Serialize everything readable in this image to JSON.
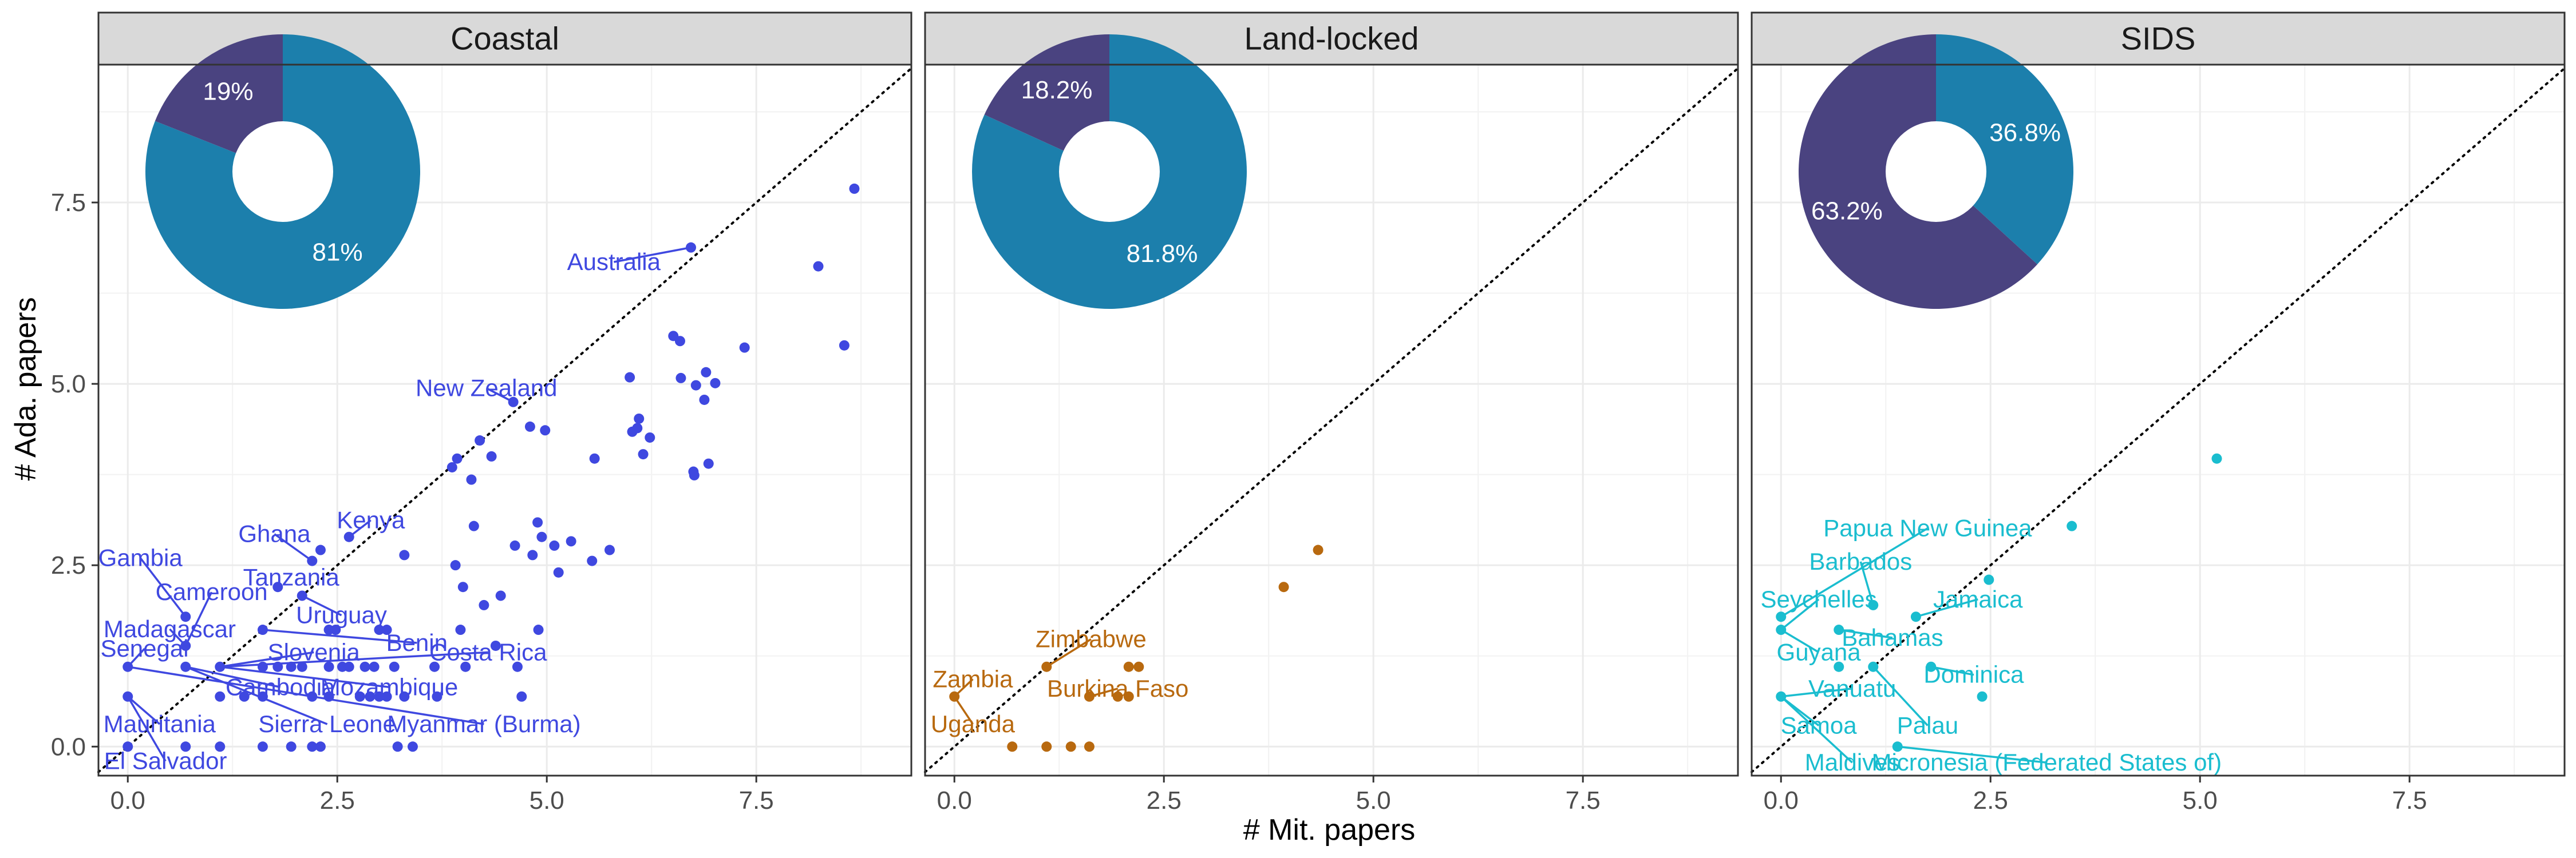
{
  "chart_data": {
    "type": "scatter",
    "xlabel": "# Mit. papers",
    "ylabel": "# Ada. papers",
    "xlim": [
      -0.35,
      9.35
    ],
    "ylim": [
      -0.4,
      9.4
    ],
    "x_ticks": [
      "0.0",
      "2.5",
      "5.0",
      "7.5"
    ],
    "x_tick_values": [
      0,
      2.5,
      5,
      7.5
    ],
    "y_ticks": [
      "0.0",
      "2.5",
      "5.0",
      "7.5"
    ],
    "y_tick_values": [
      0,
      2.5,
      5,
      7.5
    ],
    "grid": true,
    "reference_line": "y = x (dotted)",
    "facets": [
      {
        "name": "Coastal",
        "color": "#3F48E0",
        "pie": {
          "slices": [
            {
              "label": "81%",
              "value": 81,
              "color": "#1C7FAC"
            },
            {
              "label": "19%",
              "value": 19,
              "color": "#4A4380"
            }
          ]
        },
        "points": [
          {
            "x": 0.0,
            "y": 1.1
          },
          {
            "x": 0.0,
            "y": 0.69
          },
          {
            "x": 0.0,
            "y": 0.0
          },
          {
            "x": 0.69,
            "y": 1.79
          },
          {
            "x": 0.69,
            "y": 1.39
          },
          {
            "x": 0.69,
            "y": 1.1
          },
          {
            "x": 0.69,
            "y": 0.0
          },
          {
            "x": 1.1,
            "y": 1.1
          },
          {
            "x": 1.1,
            "y": 0.69
          },
          {
            "x": 1.1,
            "y": 0.0
          },
          {
            "x": 1.39,
            "y": 0.69
          },
          {
            "x": 1.61,
            "y": 1.61
          },
          {
            "x": 1.61,
            "y": 1.1
          },
          {
            "x": 1.61,
            "y": 0.69
          },
          {
            "x": 1.61,
            "y": 0.0
          },
          {
            "x": 1.79,
            "y": 2.2
          },
          {
            "x": 1.79,
            "y": 1.1
          },
          {
            "x": 1.95,
            "y": 1.1
          },
          {
            "x": 1.95,
            "y": 0.0
          },
          {
            "x": 2.08,
            "y": 2.08
          },
          {
            "x": 2.08,
            "y": 1.1
          },
          {
            "x": 2.2,
            "y": 2.56
          },
          {
            "x": 2.2,
            "y": 0.69
          },
          {
            "x": 2.2,
            "y": 0.0
          },
          {
            "x": 2.3,
            "y": 2.71
          },
          {
            "x": 2.3,
            "y": 0.0
          },
          {
            "x": 2.4,
            "y": 1.61
          },
          {
            "x": 2.4,
            "y": 1.1
          },
          {
            "x": 2.4,
            "y": 0.69
          },
          {
            "x": 2.48,
            "y": 1.61
          },
          {
            "x": 2.56,
            "y": 1.1
          },
          {
            "x": 2.64,
            "y": 2.89
          },
          {
            "x": 2.64,
            "y": 1.1
          },
          {
            "x": 2.77,
            "y": 0.69
          },
          {
            "x": 2.83,
            "y": 1.1
          },
          {
            "x": 2.89,
            "y": 0.69
          },
          {
            "x": 2.94,
            "y": 1.1
          },
          {
            "x": 3.0,
            "y": 1.61
          },
          {
            "x": 3.0,
            "y": 0.69
          },
          {
            "x": 3.09,
            "y": 1.61
          },
          {
            "x": 3.09,
            "y": 0.69
          },
          {
            "x": 3.18,
            "y": 1.1
          },
          {
            "x": 3.22,
            "y": 0.0
          },
          {
            "x": 3.3,
            "y": 2.64
          },
          {
            "x": 3.3,
            "y": 0.69
          },
          {
            "x": 3.4,
            "y": 0.0
          },
          {
            "x": 3.66,
            "y": 1.1
          },
          {
            "x": 3.69,
            "y": 0.69
          },
          {
            "x": 3.87,
            "y": 3.85
          },
          {
            "x": 3.91,
            "y": 2.5
          },
          {
            "x": 3.93,
            "y": 3.97
          },
          {
            "x": 3.97,
            "y": 1.61
          },
          {
            "x": 4.0,
            "y": 2.2
          },
          {
            "x": 4.03,
            "y": 1.1
          },
          {
            "x": 4.1,
            "y": 3.68
          },
          {
            "x": 4.13,
            "y": 3.04
          },
          {
            "x": 4.2,
            "y": 4.22
          },
          {
            "x": 4.25,
            "y": 1.95
          },
          {
            "x": 4.34,
            "y": 4.0
          },
          {
            "x": 4.39,
            "y": 1.39
          },
          {
            "x": 4.45,
            "y": 2.08
          },
          {
            "x": 4.6,
            "y": 4.75
          },
          {
            "x": 4.62,
            "y": 2.77
          },
          {
            "x": 4.65,
            "y": 1.1
          },
          {
            "x": 4.7,
            "y": 0.69
          },
          {
            "x": 4.8,
            "y": 4.41
          },
          {
            "x": 4.83,
            "y": 2.64
          },
          {
            "x": 4.89,
            "y": 3.09
          },
          {
            "x": 4.9,
            "y": 1.61
          },
          {
            "x": 4.94,
            "y": 2.89
          },
          {
            "x": 4.98,
            "y": 4.36
          },
          {
            "x": 5.09,
            "y": 2.77
          },
          {
            "x": 5.14,
            "y": 2.4
          },
          {
            "x": 5.29,
            "y": 2.83
          },
          {
            "x": 5.54,
            "y": 2.56
          },
          {
            "x": 5.57,
            "y": 3.97
          },
          {
            "x": 5.75,
            "y": 2.71
          },
          {
            "x": 5.99,
            "y": 5.09
          },
          {
            "x": 6.02,
            "y": 4.34
          },
          {
            "x": 6.08,
            "y": 4.39
          },
          {
            "x": 6.1,
            "y": 4.52
          },
          {
            "x": 6.15,
            "y": 4.03
          },
          {
            "x": 6.23,
            "y": 4.26
          },
          {
            "x": 6.51,
            "y": 5.66
          },
          {
            "x": 6.59,
            "y": 5.59
          },
          {
            "x": 6.6,
            "y": 5.08
          },
          {
            "x": 6.72,
            "y": 6.88
          },
          {
            "x": 6.75,
            "y": 3.79
          },
          {
            "x": 6.76,
            "y": 3.74
          },
          {
            "x": 6.78,
            "y": 4.98
          },
          {
            "x": 6.88,
            "y": 4.78
          },
          {
            "x": 6.9,
            "y": 5.16
          },
          {
            "x": 6.93,
            "y": 3.9
          },
          {
            "x": 7.01,
            "y": 5.01
          },
          {
            "x": 7.36,
            "y": 5.5
          },
          {
            "x": 8.24,
            "y": 6.62
          },
          {
            "x": 8.55,
            "y": 5.53
          },
          {
            "x": 8.67,
            "y": 7.69
          }
        ],
        "labels": [
          {
            "text": "Australia",
            "x": 5.8,
            "y": 6.68,
            "px": 6.72,
            "py": 6.88
          },
          {
            "text": "New Zealand",
            "x": 4.28,
            "y": 4.94,
            "px": 4.6,
            "py": 4.75
          },
          {
            "text": "Kenya",
            "x": 2.9,
            "y": 3.12,
            "px": 2.64,
            "py": 2.89
          },
          {
            "text": "Ghana",
            "x": 1.75,
            "y": 2.93,
            "px": 2.2,
            "py": 2.56
          },
          {
            "text": "Gambia",
            "x": 0.15,
            "y": 2.6,
            "px": 0.69,
            "py": 1.79
          },
          {
            "text": "Tanzania",
            "x": 1.95,
            "y": 2.33,
            "px": 1.79,
            "py": 2.2
          },
          {
            "text": "Cameroon",
            "x": 1.0,
            "y": 2.13,
            "px": 0.69,
            "py": 1.39
          },
          {
            "text": "Uruguay",
            "x": 2.55,
            "y": 1.81,
            "px": 2.08,
            "py": 2.08
          },
          {
            "text": "Madagascar",
            "x": 0.5,
            "y": 1.62,
            "px": 0.69,
            "py": 1.39
          },
          {
            "text": "Benin",
            "x": 3.45,
            "y": 1.43,
            "px": 1.61,
            "py": 1.61
          },
          {
            "text": "Senegal",
            "x": 0.2,
            "y": 1.35,
            "px": 0.0,
            "py": 1.1
          },
          {
            "text": "Slovenia",
            "x": 2.22,
            "y": 1.3,
            "px": 1.1,
            "py": 1.1
          },
          {
            "text": "Costa Rica",
            "x": 4.3,
            "y": 1.3,
            "px": 1.1,
            "py": 1.1
          },
          {
            "text": "Cambodia",
            "x": 1.82,
            "y": 0.82,
            "px": 0.69,
            "py": 1.1
          },
          {
            "text": "Mozambique",
            "x": 3.12,
            "y": 0.82,
            "px": 1.1,
            "py": 1.1
          },
          {
            "text": "Mauritania",
            "x": 0.38,
            "y": 0.31,
            "px": 0.0,
            "py": 0.69
          },
          {
            "text": "Sierra Leone",
            "x": 2.38,
            "y": 0.31,
            "px": 0.69,
            "py": 1.1
          },
          {
            "text": "Myanmar (Burma)",
            "x": 4.25,
            "y": 0.31,
            "px": 0.0,
            "py": 1.1
          },
          {
            "text": "El Salvador",
            "x": 0.45,
            "y": -0.2,
            "px": 0.0,
            "py": 0.69
          }
        ]
      },
      {
        "name": "Land-locked",
        "color": "#B8690F",
        "pie": {
          "slices": [
            {
              "label": "81.8%",
              "value": 81.8,
              "color": "#1C7FAC"
            },
            {
              "label": "18.2%",
              "value": 18.2,
              "color": "#4A4380"
            }
          ]
        },
        "points": [
          {
            "x": 0.0,
            "y": 0.69
          },
          {
            "x": 0.69,
            "y": 0.0
          },
          {
            "x": 1.1,
            "y": 1.1
          },
          {
            "x": 1.1,
            "y": 0.0
          },
          {
            "x": 1.39,
            "y": 0.0
          },
          {
            "x": 1.61,
            "y": 0.69
          },
          {
            "x": 1.61,
            "y": 0.0
          },
          {
            "x": 1.95,
            "y": 0.69
          },
          {
            "x": 2.08,
            "y": 0.69
          },
          {
            "x": 2.08,
            "y": 1.1
          },
          {
            "x": 2.2,
            "y": 1.1
          },
          {
            "x": 3.93,
            "y": 2.2
          },
          {
            "x": 4.34,
            "y": 2.71
          }
        ],
        "labels": [
          {
            "text": "Zimbabwe",
            "x": 1.63,
            "y": 1.48,
            "px": 1.1,
            "py": 1.1
          },
          {
            "text": "Zambia",
            "x": 0.22,
            "y": 0.93,
            "px": 0.0,
            "py": 0.69
          },
          {
            "text": "Burkina Faso",
            "x": 1.95,
            "y": 0.8,
            "px": 1.61,
            "py": 0.69
          },
          {
            "text": "Uganda",
            "x": 0.22,
            "y": 0.31,
            "px": 0.0,
            "py": 0.69
          }
        ]
      },
      {
        "name": "SIDS",
        "color": "#1ABDCF",
        "pie": {
          "slices": [
            {
              "label": "36.8%",
              "value": 36.8,
              "color": "#1C7FAC"
            },
            {
              "label": "63.2%",
              "value": 63.2,
              "color": "#4A4380"
            }
          ]
        },
        "points": [
          {
            "x": 0.0,
            "y": 1.79
          },
          {
            "x": 0.0,
            "y": 1.61
          },
          {
            "x": 0.0,
            "y": 0.69
          },
          {
            "x": 0.69,
            "y": 1.61
          },
          {
            "x": 0.69,
            "y": 1.1
          },
          {
            "x": 1.1,
            "y": 1.95
          },
          {
            "x": 1.1,
            "y": 1.1
          },
          {
            "x": 1.39,
            "y": 0.0
          },
          {
            "x": 1.61,
            "y": 1.79
          },
          {
            "x": 1.79,
            "y": 1.1
          },
          {
            "x": 2.4,
            "y": 0.69
          },
          {
            "x": 2.48,
            "y": 2.3
          },
          {
            "x": 3.47,
            "y": 3.04
          },
          {
            "x": 5.2,
            "y": 3.97
          }
        ],
        "labels": [
          {
            "text": "Papua New Guinea",
            "x": 1.75,
            "y": 3.01,
            "px": 0.0,
            "py": 1.79
          },
          {
            "text": "Barbados",
            "x": 0.95,
            "y": 2.55,
            "px": 1.1,
            "py": 1.95
          },
          {
            "text": "Seychelles",
            "x": 0.45,
            "y": 2.03,
            "px": 0.0,
            "py": 1.61
          },
          {
            "text": "Jamaica",
            "x": 2.35,
            "y": 2.03,
            "px": 1.61,
            "py": 1.79
          },
          {
            "text": "Bahamas",
            "x": 1.33,
            "y": 1.5,
            "px": 0.69,
            "py": 1.61
          },
          {
            "text": "Guyana",
            "x": 0.45,
            "y": 1.3,
            "px": 0.0,
            "py": 1.61
          },
          {
            "text": "Dominica",
            "x": 2.3,
            "y": 0.99,
            "px": 1.79,
            "py": 1.1
          },
          {
            "text": "Vanuatu",
            "x": 0.85,
            "y": 0.8,
            "px": 0.0,
            "py": 0.69
          },
          {
            "text": "Samoa",
            "x": 0.45,
            "y": 0.29,
            "px": 0.0,
            "py": 0.69
          },
          {
            "text": "Palau",
            "x": 1.75,
            "y": 0.29,
            "px": 1.1,
            "py": 1.1
          },
          {
            "text": "Maldives",
            "x": 0.85,
            "y": -0.22,
            "px": 0.0,
            "py": 0.69
          },
          {
            "text": "Micronesia (Federated States of)",
            "x": 3.17,
            "y": -0.22,
            "px": 1.39,
            "py": 0.0
          }
        ]
      }
    ]
  }
}
